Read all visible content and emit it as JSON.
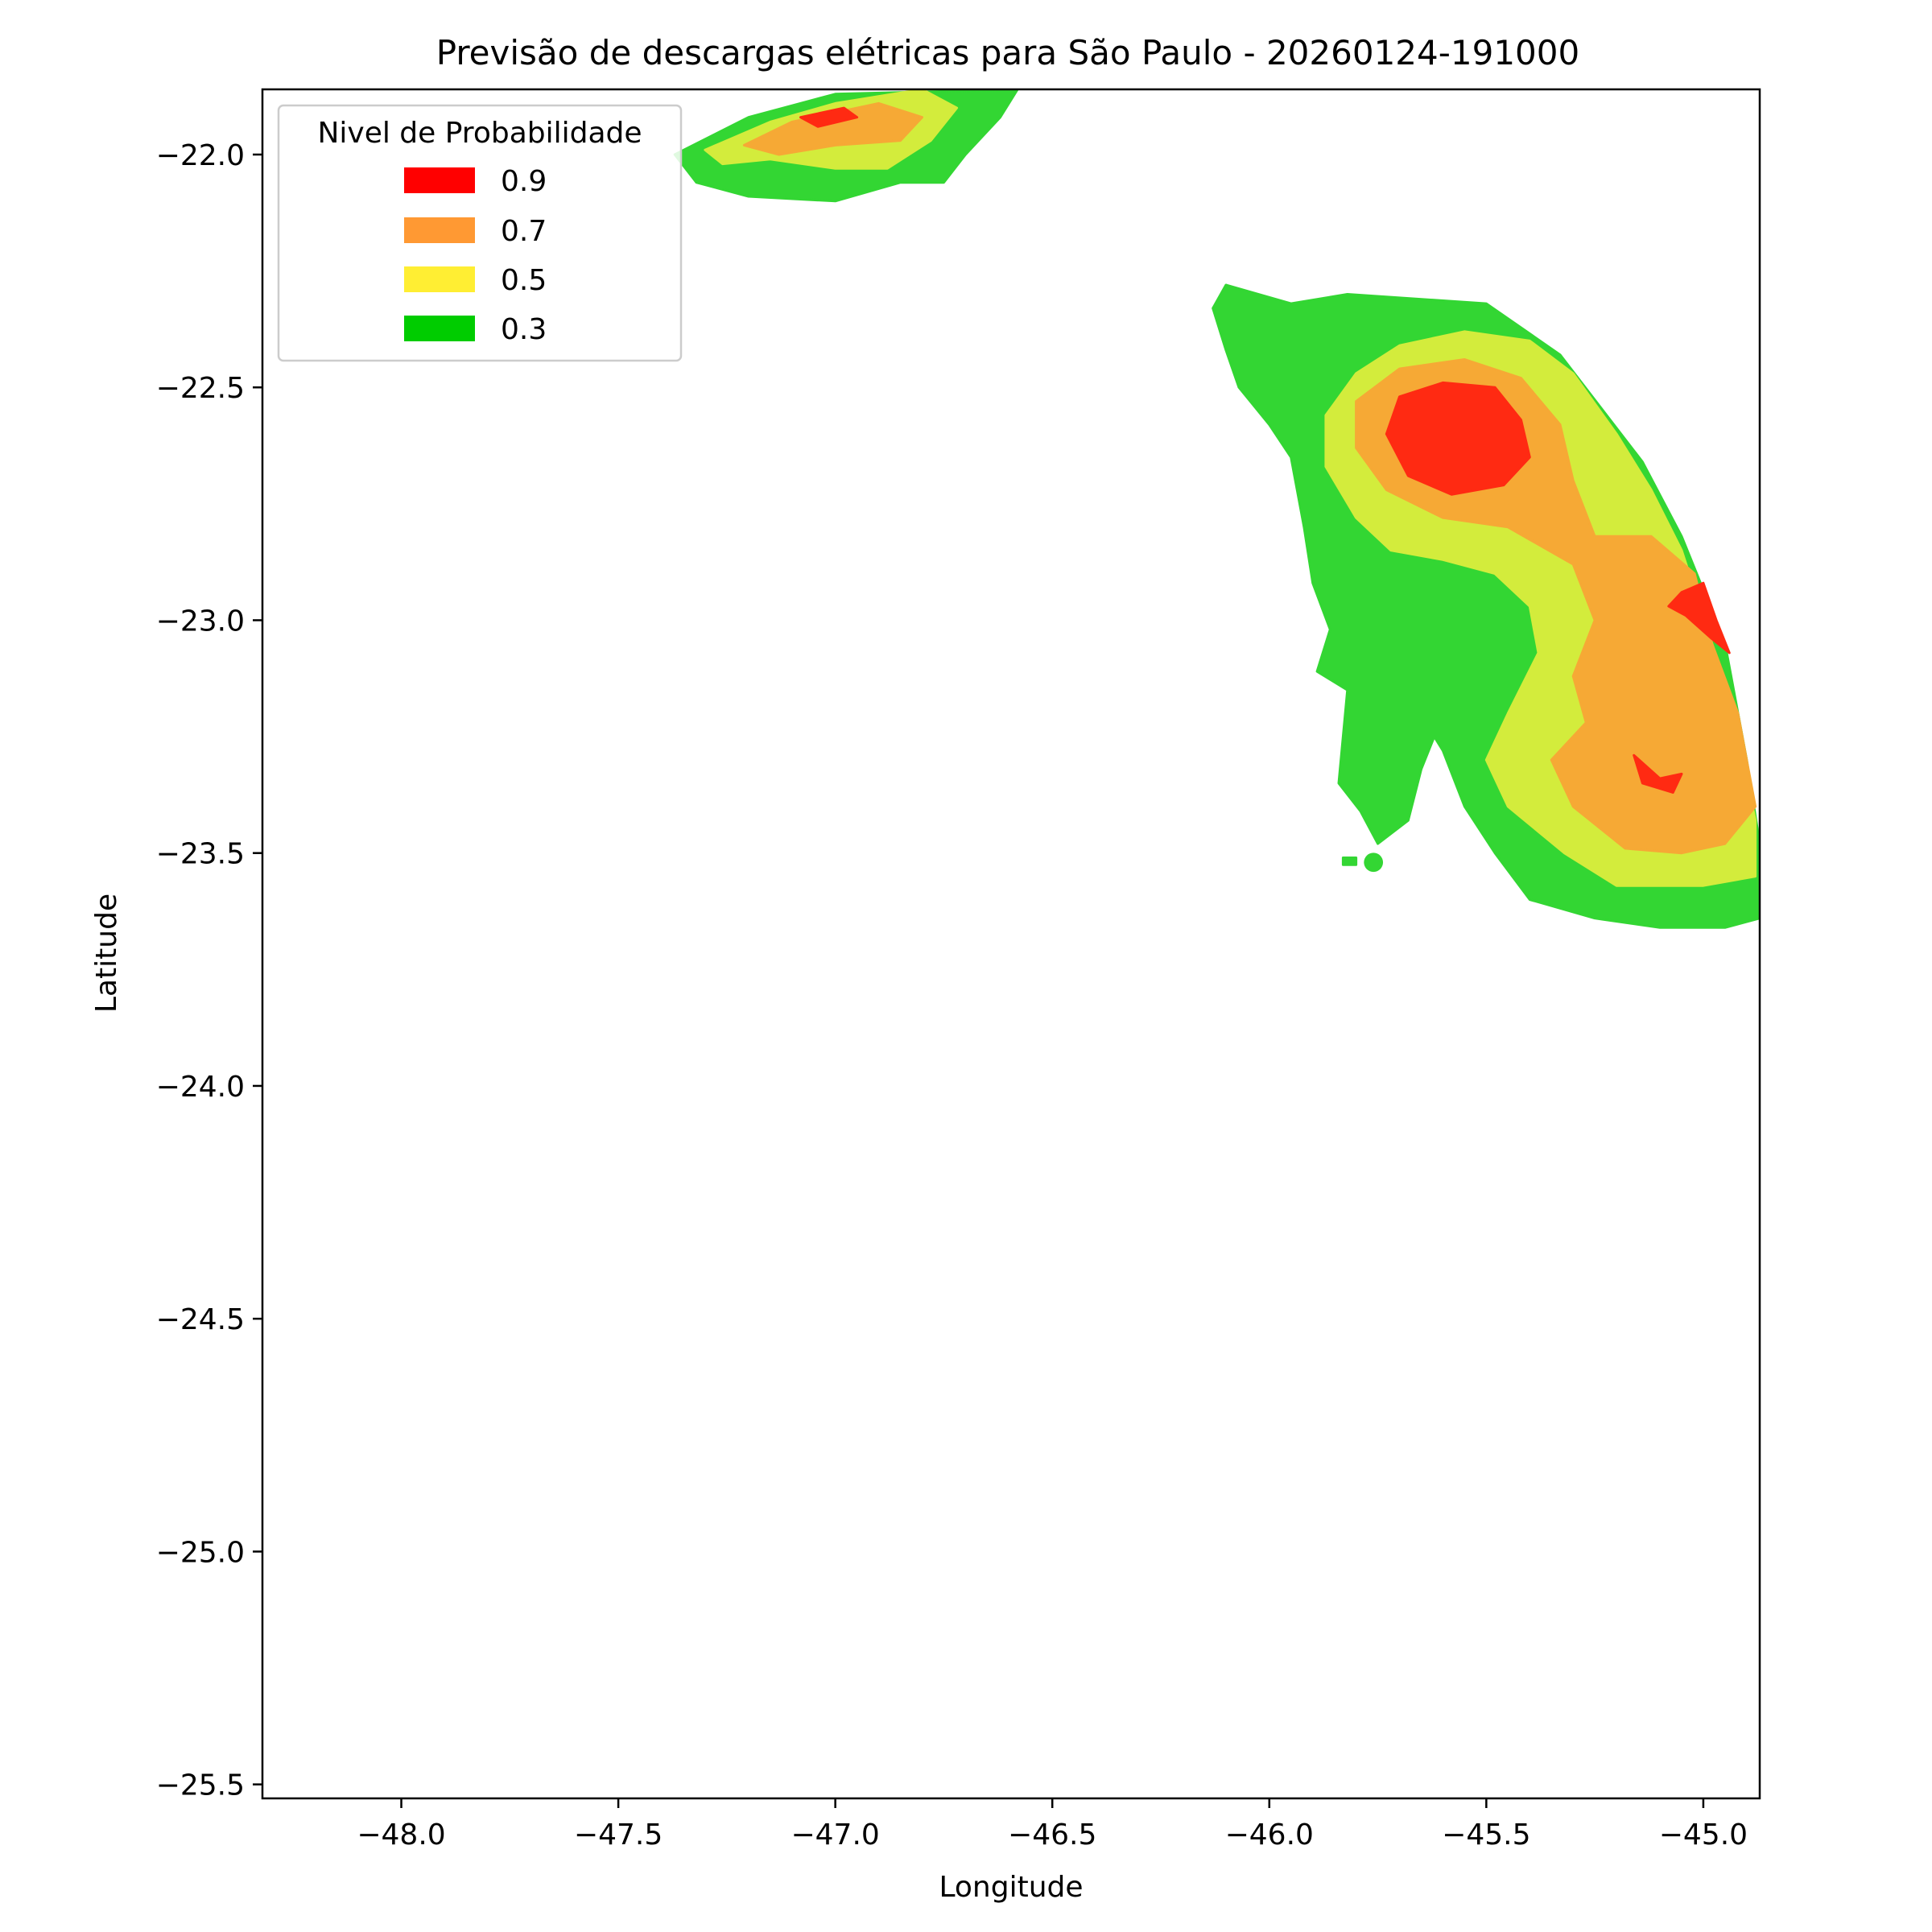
{
  "chart_data": {
    "type": "contour",
    "title": "Previsão de descargas elétricas para São Paulo - 20260124-191000",
    "xlabel": "Longitude",
    "ylabel": "Latitude",
    "xlim": [
      -48.32,
      -44.87
    ],
    "ylim": [
      -25.53,
      -21.86
    ],
    "xticks": [
      -48.0,
      -47.5,
      -47.0,
      -46.5,
      -46.0,
      -45.5,
      -45.0
    ],
    "xtick_labels": [
      "−48.0",
      "−47.5",
      "−47.0",
      "−46.5",
      "−46.0",
      "−45.5",
      "−45.0"
    ],
    "yticks": [
      -22.0,
      -22.5,
      -23.0,
      -23.5,
      -24.0,
      -24.5,
      -25.0,
      -25.5
    ],
    "ytick_labels": [
      "−22.0",
      "−22.5",
      "−23.0",
      "−23.5",
      "−24.0",
      "−24.5",
      "−25.0",
      "−25.5"
    ],
    "grid": false,
    "legend": {
      "title": "Nivel de Probabilidade",
      "placement": "upper-left",
      "entries": [
        {
          "label": "0.9",
          "color": "#ff0000"
        },
        {
          "label": "0.7",
          "color": "#ff9933"
        },
        {
          "label": "0.5",
          "color": "#ffee33"
        },
        {
          "label": "0.3",
          "color": "#00cc00"
        }
      ]
    },
    "fill_colors": {
      "0.3": "#33d633",
      "0.5": "#d3ec3c",
      "0.7": "#f6a935",
      "0.9": "#ff2a12"
    },
    "regions": [
      {
        "level": "0.3",
        "polygon": [
          [
            -47.37,
            -22.0
          ],
          [
            -47.2,
            -21.92
          ],
          [
            -47.0,
            -21.87
          ],
          [
            -46.58,
            -21.86
          ],
          [
            -46.62,
            -21.92
          ],
          [
            -46.7,
            -22.0
          ],
          [
            -46.75,
            -22.06
          ],
          [
            -46.85,
            -22.06
          ],
          [
            -47.0,
            -22.1
          ],
          [
            -47.2,
            -22.09
          ],
          [
            -47.32,
            -22.06
          ]
        ]
      },
      {
        "level": "0.5",
        "polygon": [
          [
            -47.3,
            -21.99
          ],
          [
            -47.15,
            -21.93
          ],
          [
            -47.0,
            -21.89
          ],
          [
            -46.8,
            -21.86
          ],
          [
            -46.72,
            -21.9
          ],
          [
            -46.78,
            -21.97
          ],
          [
            -46.88,
            -22.03
          ],
          [
            -47.0,
            -22.03
          ],
          [
            -47.15,
            -22.01
          ],
          [
            -47.26,
            -22.02
          ]
        ]
      },
      {
        "level": "0.7",
        "polygon": [
          [
            -47.21,
            -21.98
          ],
          [
            -47.1,
            -21.93
          ],
          [
            -47.0,
            -21.91
          ],
          [
            -46.9,
            -21.89
          ],
          [
            -46.8,
            -21.92
          ],
          [
            -46.85,
            -21.97
          ],
          [
            -47.0,
            -21.98
          ],
          [
            -47.13,
            -22.0
          ]
        ]
      },
      {
        "level": "0.9",
        "polygon": [
          [
            -47.08,
            -21.92
          ],
          [
            -46.98,
            -21.9
          ],
          [
            -46.95,
            -21.92
          ],
          [
            -47.04,
            -21.94
          ]
        ]
      },
      {
        "level": "0.3",
        "polygon": [
          [
            -46.13,
            -22.33
          ],
          [
            -46.1,
            -22.28
          ],
          [
            -45.95,
            -22.32
          ],
          [
            -45.82,
            -22.3
          ],
          [
            -45.5,
            -22.32
          ],
          [
            -45.33,
            -22.43
          ],
          [
            -45.14,
            -22.66
          ],
          [
            -45.05,
            -22.82
          ],
          [
            -44.95,
            -23.05
          ],
          [
            -44.9,
            -23.3
          ],
          [
            -44.87,
            -23.48
          ],
          [
            -44.87,
            -23.64
          ],
          [
            -44.95,
            -23.66
          ],
          [
            -45.1,
            -23.66
          ],
          [
            -45.25,
            -23.64
          ],
          [
            -45.4,
            -23.6
          ],
          [
            -45.48,
            -23.5
          ],
          [
            -45.55,
            -23.4
          ],
          [
            -45.6,
            -23.28
          ],
          [
            -45.62,
            -23.25
          ],
          [
            -45.65,
            -23.32
          ],
          [
            -45.68,
            -23.43
          ],
          [
            -45.75,
            -23.48
          ],
          [
            -45.79,
            -23.41
          ],
          [
            -45.84,
            -23.35
          ],
          [
            -45.82,
            -23.15
          ],
          [
            -45.89,
            -23.11
          ],
          [
            -45.86,
            -23.02
          ],
          [
            -45.9,
            -22.92
          ],
          [
            -45.92,
            -22.8
          ],
          [
            -45.95,
            -22.65
          ],
          [
            -46.0,
            -22.58
          ],
          [
            -46.07,
            -22.5
          ],
          [
            -46.1,
            -22.42
          ]
        ]
      },
      {
        "level": "0.5",
        "polygon": [
          [
            -45.87,
            -22.56
          ],
          [
            -45.8,
            -22.47
          ],
          [
            -45.7,
            -22.41
          ],
          [
            -45.55,
            -22.38
          ],
          [
            -45.4,
            -22.4
          ],
          [
            -45.3,
            -22.47
          ],
          [
            -45.2,
            -22.6
          ],
          [
            -45.12,
            -22.72
          ],
          [
            -45.05,
            -22.85
          ],
          [
            -44.98,
            -23.05
          ],
          [
            -44.92,
            -23.25
          ],
          [
            -44.88,
            -23.43
          ],
          [
            -44.88,
            -23.55
          ],
          [
            -45.0,
            -23.57
          ],
          [
            -45.2,
            -23.57
          ],
          [
            -45.32,
            -23.5
          ],
          [
            -45.45,
            -23.4
          ],
          [
            -45.5,
            -23.3
          ],
          [
            -45.45,
            -23.2
          ],
          [
            -45.38,
            -23.07
          ],
          [
            -45.4,
            -22.97
          ],
          [
            -45.48,
            -22.9
          ],
          [
            -45.6,
            -22.87
          ],
          [
            -45.72,
            -22.85
          ],
          [
            -45.8,
            -22.78
          ],
          [
            -45.87,
            -22.67
          ]
        ]
      },
      {
        "level": "0.7",
        "polygon": [
          [
            -45.8,
            -22.53
          ],
          [
            -45.7,
            -22.46
          ],
          [
            -45.55,
            -22.44
          ],
          [
            -45.42,
            -22.48
          ],
          [
            -45.33,
            -22.58
          ],
          [
            -45.3,
            -22.7
          ],
          [
            -45.25,
            -22.82
          ],
          [
            -45.12,
            -22.82
          ],
          [
            -45.02,
            -22.9
          ],
          [
            -44.98,
            -23.05
          ],
          [
            -44.92,
            -23.2
          ],
          [
            -44.88,
            -23.4
          ],
          [
            -44.95,
            -23.48
          ],
          [
            -45.05,
            -23.5
          ],
          [
            -45.18,
            -23.49
          ],
          [
            -45.3,
            -23.4
          ],
          [
            -45.35,
            -23.3
          ],
          [
            -45.27,
            -23.22
          ],
          [
            -45.3,
            -23.12
          ],
          [
            -45.25,
            -23.0
          ],
          [
            -45.3,
            -22.88
          ],
          [
            -45.45,
            -22.8
          ],
          [
            -45.6,
            -22.78
          ],
          [
            -45.73,
            -22.72
          ],
          [
            -45.8,
            -22.63
          ]
        ]
      },
      {
        "level": "0.9",
        "polygon": [
          [
            -45.7,
            -22.52
          ],
          [
            -45.6,
            -22.49
          ],
          [
            -45.48,
            -22.5
          ],
          [
            -45.42,
            -22.57
          ],
          [
            -45.4,
            -22.65
          ],
          [
            -45.46,
            -22.71
          ],
          [
            -45.58,
            -22.73
          ],
          [
            -45.68,
            -22.69
          ],
          [
            -45.73,
            -22.6
          ]
        ]
      },
      {
        "level": "0.9",
        "polygon": [
          [
            -45.05,
            -22.94
          ],
          [
            -45.0,
            -22.92
          ],
          [
            -44.97,
            -23.0
          ],
          [
            -44.94,
            -23.07
          ],
          [
            -44.98,
            -23.04
          ],
          [
            -45.04,
            -22.99
          ],
          [
            -45.08,
            -22.97
          ]
        ]
      },
      {
        "level": "0.9",
        "polygon": [
          [
            -45.16,
            -23.29
          ],
          [
            -45.1,
            -23.34
          ],
          [
            -45.05,
            -23.33
          ],
          [
            -45.07,
            -23.37
          ],
          [
            -45.14,
            -23.35
          ]
        ]
      },
      {
        "level": "0.3",
        "circle": {
          "x": -45.76,
          "y": -23.52,
          "r": 0.022
        }
      },
      {
        "level": "0.3",
        "polygon": [
          [
            -45.83,
            -23.51
          ],
          [
            -45.8,
            -23.51
          ],
          [
            -45.8,
            -23.525
          ],
          [
            -45.83,
            -23.525
          ]
        ]
      }
    ]
  }
}
